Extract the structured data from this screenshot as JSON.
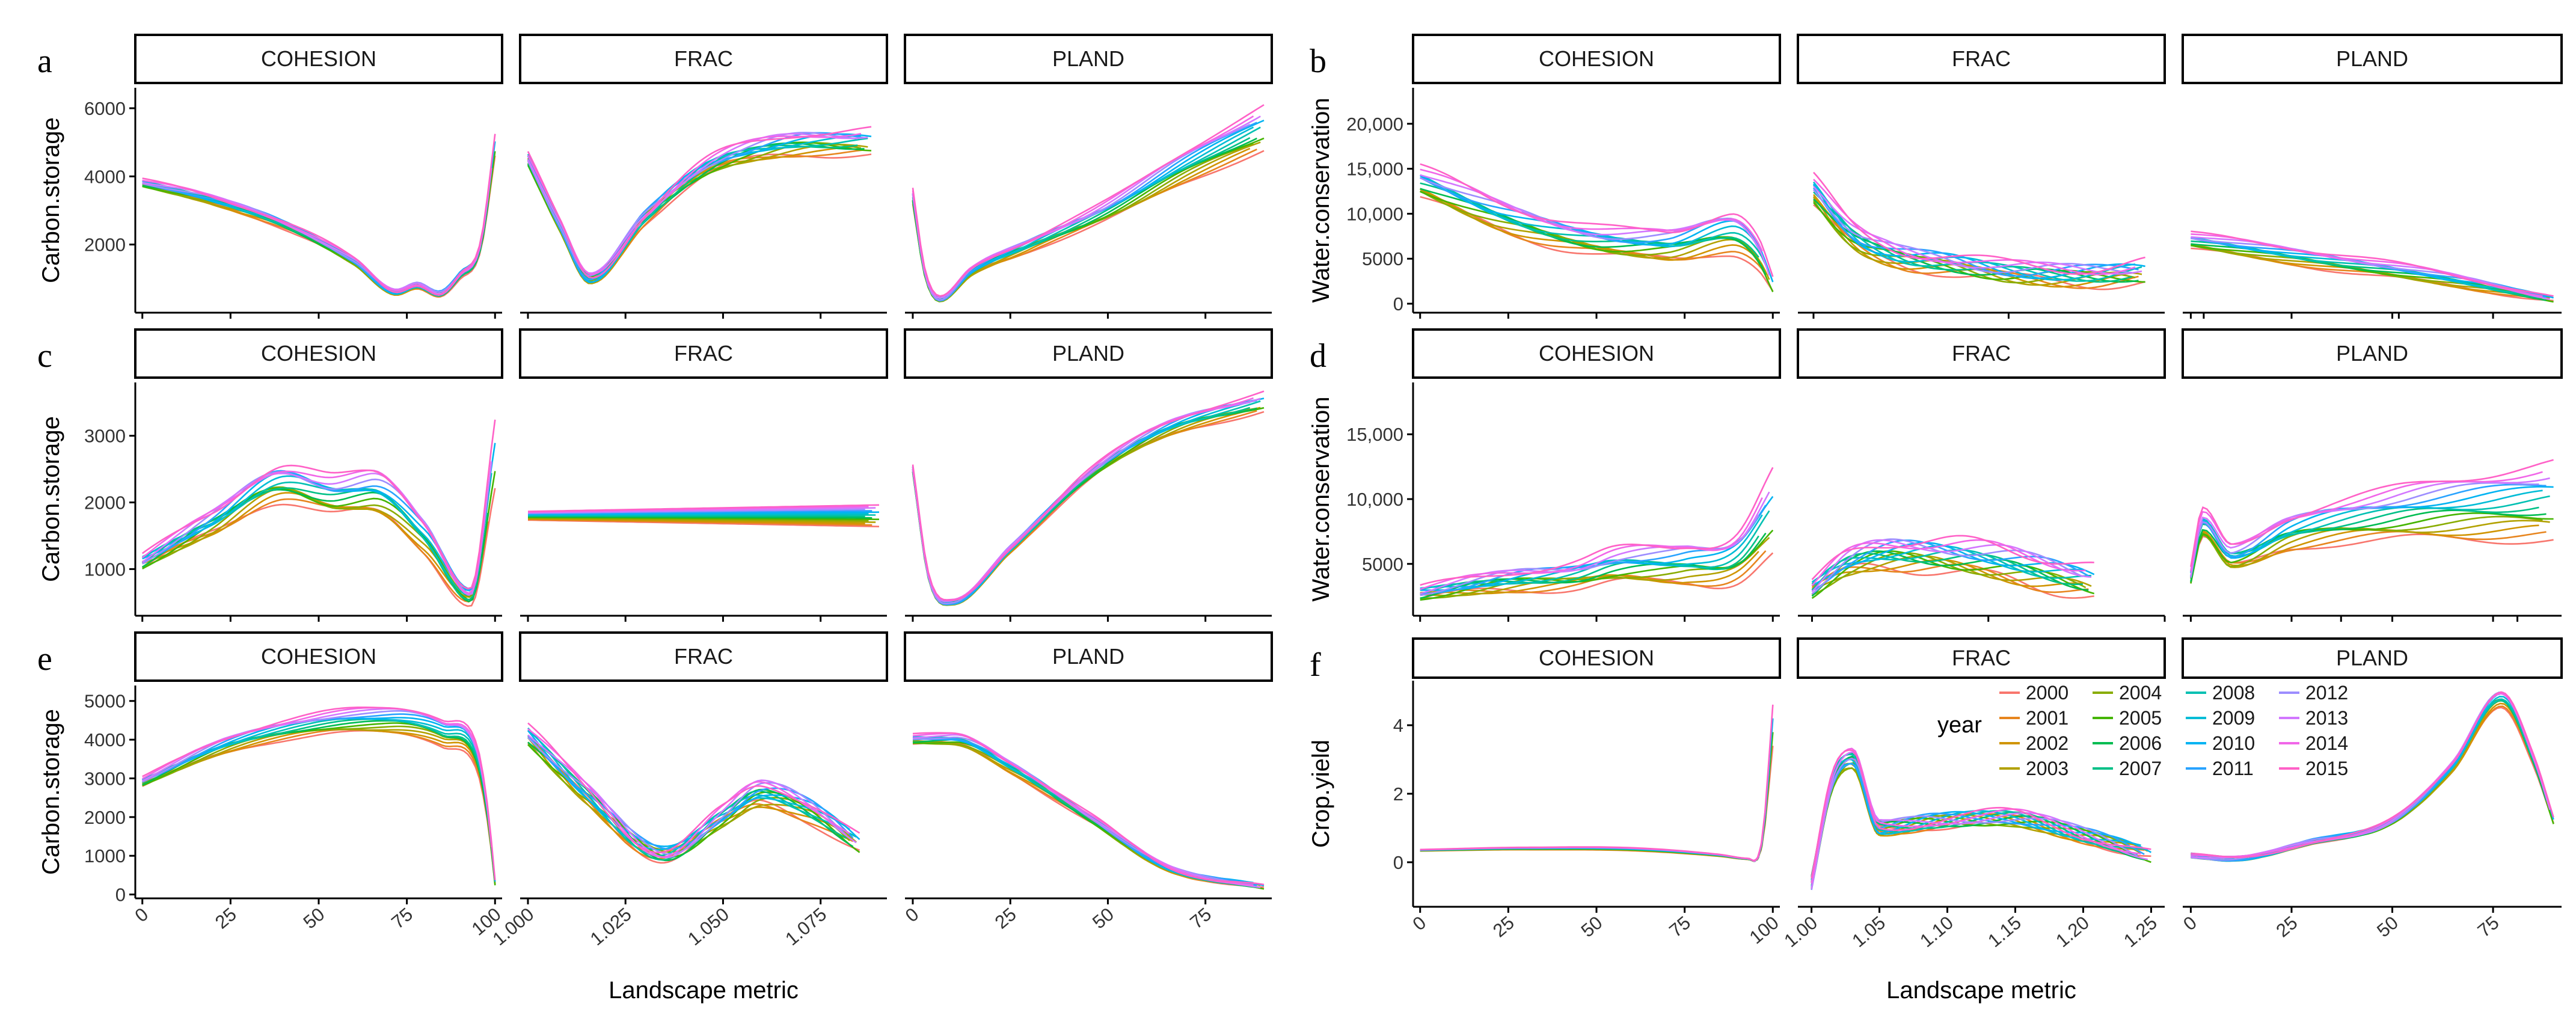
{
  "chart_data": {
    "type": "line",
    "title": "",
    "xlabel": "Landscape metric",
    "facets": [
      "COHESION",
      "FRAC",
      "PLAND"
    ],
    "legend": {
      "title": "year",
      "entries": [
        "2000",
        "2001",
        "2002",
        "2003",
        "2004",
        "2005",
        "2006",
        "2007",
        "2008",
        "2009",
        "2010",
        "2011",
        "2012",
        "2013",
        "2014",
        "2015"
      ],
      "colors": [
        "#F8766D",
        "#E7851E",
        "#D09400",
        "#B2A100",
        "#89AC00",
        "#45B500",
        "#00BC51",
        "#00C087",
        "#00C0B2",
        "#00BCD6",
        "#00B3F2",
        "#29A3FF",
        "#9C8DFF",
        "#D277FF",
        "#F166E8",
        "#FF61C7"
      ]
    },
    "panels": [
      {
        "letter": "a",
        "ylabel": "Carbon.storage",
        "yticks": [
          2000,
          4000,
          6000
        ],
        "ytick_labels": [
          "2000",
          "4000",
          "6000"
        ],
        "ylim": [
          0,
          6600
        ],
        "facets": [
          {
            "xlim": [
              -2,
              102
            ],
            "knots_x": [
              0,
              20,
              40,
              60,
              72,
              78,
              84,
              90,
              96,
              100
            ],
            "knots_y": [
              3800,
              3300,
              2600,
              1500,
              600,
              800,
              550,
              1100,
              2000,
              4900
            ],
            "spread": 0.06,
            "slope": 0,
            "wiggle": 0.01
          },
          {
            "xlim": [
              0.998,
              1.092
            ],
            "knots_x": [
              1.0,
              1.008,
              1.016,
              1.03,
              1.045,
              1.06,
              1.075,
              1.088
            ],
            "knots_y": [
              4500,
              2600,
              1000,
              2800,
              4200,
              4800,
              5000,
              5000
            ],
            "spread": 0.07,
            "slope": 0,
            "wiggle": 0.02
          },
          {
            "xlim": [
              -2,
              92
            ],
            "knots_x": [
              0,
              3,
              7,
              15,
              30,
              50,
              70,
              90
            ],
            "knots_y": [
              3400,
              1200,
              400,
              1200,
              2000,
              3000,
              4300,
              5400
            ],
            "spread": 0.12,
            "slope": 0.8,
            "wiggle": 0.01
          }
        ]
      },
      {
        "letter": "b",
        "ylabel": "Water.conservation",
        "yticks": [
          0,
          5000,
          10000,
          15000,
          20000
        ],
        "ytick_labels": [
          "0",
          "5000",
          "10,000",
          "15,000",
          "20,000"
        ],
        "ylim": [
          -1000,
          24000
        ],
        "facets": [
          {
            "xlim": [
              -2,
              102
            ],
            "knots_x": [
              0,
              25,
              50,
              70,
              88,
              96,
              100
            ],
            "knots_y": [
              13500,
              9500,
              7000,
              6500,
              8000,
              5500,
              2000
            ],
            "spread": 0.3,
            "slope": 0,
            "wiggle": 0.02
          },
          {
            "xlim": [
              0.996,
              1.09
            ],
            "knots_x": [
              1.0,
              1.01,
              1.02,
              1.035,
              1.05,
              1.07,
              1.085
            ],
            "knots_y": [
              12500,
              7500,
              5500,
              4500,
              3500,
              3200,
              3500
            ],
            "spread": 0.3,
            "slope": 0,
            "wiggle": 0.03
          },
          {
            "xlim": [
              -2,
              92
            ],
            "knots_x": [
              0,
              30,
              60,
              90
            ],
            "knots_y": [
              7000,
              5000,
              3000,
              500
            ],
            "spread": 0.3,
            "slope": 0,
            "wiggle": 0.01
          }
        ]
      },
      {
        "letter": "c",
        "ylabel": "Carbon.storage",
        "yticks": [
          1000,
          2000,
          3000
        ],
        "ytick_labels": [
          "1000",
          "2000",
          "3000"
        ],
        "ylim": [
          300,
          3800
        ],
        "facets": [
          {
            "xlim": [
              -2,
              102
            ],
            "knots_x": [
              0,
              20,
              40,
              55,
              65,
              80,
              93,
              100
            ],
            "knots_y": [
              1100,
              1700,
              2300,
              2100,
              2150,
              1500,
              600,
              2700
            ],
            "spread": 0.18,
            "slope": 0,
            "wiggle": 0.02
          },
          {
            "xlim": [
              0.998,
              1.092
            ],
            "knots_x": [
              1.0,
              1.03,
              1.06,
              1.09
            ],
            "knots_y": [
              1800,
              1800,
              1800,
              1800
            ],
            "spread": 0.09,
            "slope": 0,
            "wiggle": 0.0
          },
          {
            "xlim": [
              -2,
              92
            ],
            "knots_x": [
              0,
              4,
              10,
              25,
              45,
              65,
              90
            ],
            "knots_y": [
              2500,
              900,
              500,
              1300,
              2400,
              3100,
              3500
            ],
            "spread": 0.04,
            "slope": 0,
            "wiggle": 0.01
          }
        ]
      },
      {
        "letter": "d",
        "ylabel": "Water.conservation",
        "yticks": [
          5000,
          10000,
          15000
        ],
        "ytick_labels": [
          "5000",
          "10,000",
          "15,000"
        ],
        "ylim": [
          1000,
          19000
        ],
        "facets": [
          {
            "xlim": [
              -2,
              102
            ],
            "knots_x": [
              0,
              25,
              45,
              55,
              75,
              90,
              100
            ],
            "knots_y": [
              2700,
              3700,
              4200,
              4800,
              5000,
              5600,
              9000
            ],
            "spread": 0.35,
            "slope": 0,
            "wiggle": 0.02
          },
          {
            "xlim": [
              0.996,
              1.1
            ],
            "knots_x": [
              1.0,
              1.01,
              1.025,
              1.05,
              1.08
            ],
            "knots_y": [
              3000,
              5000,
              5800,
              5200,
              3600
            ],
            "spread": 0.3,
            "slope": 0,
            "wiggle": 0.03
          },
          {
            "xlim": [
              -2,
              92
            ],
            "knots_x": [
              0,
              3,
              10,
              25,
              50,
              90
            ],
            "knots_y": [
              4000,
              8000,
              5500,
              7500,
              8800,
              9800
            ],
            "spread": 0.3,
            "slope": 0,
            "wiggle": 0.02
          }
        ]
      },
      {
        "letter": "e",
        "ylabel": "Carbon.storage",
        "yticks": [
          0,
          1000,
          2000,
          3000,
          4000,
          5000
        ],
        "ytick_labels": [
          "0",
          "1000",
          "2000",
          "3000",
          "4000",
          "5000"
        ],
        "ylim": [
          -100,
          5400
        ],
        "facets": [
          {
            "xlim": [
              -2,
              102
            ],
            "knots_x": [
              0,
              25,
              50,
              70,
              85,
              95,
              98,
              100
            ],
            "knots_y": [
              2900,
              3900,
              4400,
              4500,
              4200,
              3500,
              2000,
              300
            ],
            "spread": 0.09,
            "slope": 0,
            "wiggle": 0.01
          },
          {
            "xlim": [
              0.998,
              1.092
            ],
            "knots_x": [
              1.0,
              1.015,
              1.035,
              1.05,
              1.06,
              1.072,
              1.085
            ],
            "knots_y": [
              4100,
              2600,
              1050,
              2000,
              2600,
              2200,
              1300
            ],
            "spread": 0.12,
            "slope": 0,
            "wiggle": 0.03
          },
          {
            "xlim": [
              -2,
              92
            ],
            "knots_x": [
              0,
              10,
              25,
              45,
              65,
              90
            ],
            "knots_y": [
              4000,
              4000,
              3300,
              2000,
              700,
              200
            ],
            "spread": 0.07,
            "slope": 0,
            "wiggle": 0.01
          }
        ]
      },
      {
        "letter": "f",
        "ylabel": "Crop.yield",
        "yticks": [
          0,
          2,
          4
        ],
        "ytick_labels": [
          "0",
          "2",
          "4"
        ],
        "ylim": [
          -1.3,
          5.3
        ],
        "facets": [
          {
            "xlim": [
              -2,
              102
            ],
            "knots_x": [
              0,
              30,
              60,
              85,
              93,
              97,
              100
            ],
            "knots_y": [
              0.35,
              0.4,
              0.38,
              0.2,
              0.1,
              0.6,
              4.0
            ],
            "spread": 0.15,
            "slope": 0,
            "wiggle": 0.0
          },
          {
            "xlim": [
              0.99,
              1.26
            ],
            "knots_x": [
              1.0,
              1.015,
              1.03,
              1.05,
              1.09,
              1.14,
              1.2,
              1.25
            ],
            "knots_y": [
              -0.6,
              2.3,
              3.0,
              1.0,
              1.2,
              1.3,
              0.8,
              0.2
            ],
            "spread": 0.1,
            "slope": 0,
            "wiggle": 0.03
          },
          {
            "xlim": [
              -2,
              92
            ],
            "knots_x": [
              0,
              10,
              30,
              50,
              65,
              77,
              85,
              90
            ],
            "knots_y": [
              0.2,
              0.1,
              0.6,
              1.2,
              2.8,
              4.8,
              3.0,
              1.2
            ],
            "spread": 0.05,
            "slope": 0,
            "wiggle": 0.01
          }
        ]
      }
    ],
    "x_axes": {
      "left": [
        {
          "ticks": [
            0,
            25,
            50,
            75,
            100
          ],
          "labels": [
            "0",
            "25",
            "50",
            "75",
            "100"
          ]
        },
        {
          "ticks": [
            1.0,
            1.025,
            1.05,
            1.075
          ],
          "labels": [
            "1.000",
            "1.025",
            "1.050",
            "1.075"
          ]
        },
        {
          "ticks": [
            0,
            25,
            50,
            75
          ],
          "labels": [
            "0",
            "25",
            "50",
            "75"
          ]
        }
      ],
      "right": [
        {
          "ticks": [
            0,
            25,
            50,
            75,
            100
          ],
          "labels": [
            "0",
            "25",
            "50",
            "75",
            "100"
          ]
        },
        {
          "ticks": [
            1.0,
            1.05,
            1.1,
            1.15,
            1.2,
            1.25
          ],
          "labels": [
            "1.00",
            "1.05",
            "1.10",
            "1.15",
            "1.20",
            "1.25"
          ]
        },
        {
          "ticks": [
            0,
            25,
            50,
            75
          ],
          "labels": [
            "0",
            "25",
            "50",
            "75"
          ]
        }
      ]
    }
  }
}
